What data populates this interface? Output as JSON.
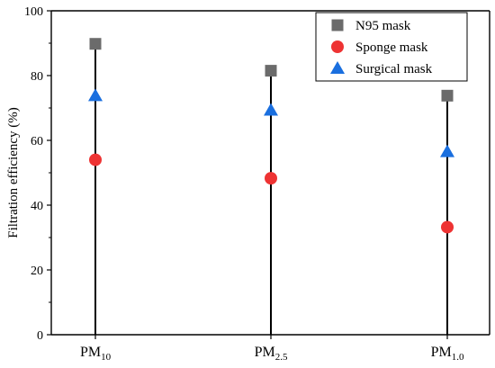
{
  "chart_data": {
    "type": "scatter",
    "categories": [
      {
        "base": "PM",
        "sub": "10"
      },
      {
        "base": "PM",
        "sub": "2.5"
      },
      {
        "base": "PM",
        "sub": "1.0"
      }
    ],
    "ylabel": "Filtration efficiency (%)",
    "ylim": [
      0,
      100
    ],
    "yticks": [
      0,
      20,
      40,
      60,
      80,
      100
    ],
    "grid": false,
    "legend_position": "top-right",
    "series": [
      {
        "name": "N95 mask",
        "marker": "square",
        "color": "#6b6b6b",
        "values": [
          89.8,
          81.5,
          73.8
        ]
      },
      {
        "name": "Sponge mask",
        "marker": "circle",
        "color": "#ee3333",
        "values": [
          54.0,
          48.3,
          33.2
        ]
      },
      {
        "name": "Surgical mask",
        "marker": "triangle",
        "color": "#1a6fdf",
        "values": [
          73.8,
          69.3,
          56.5
        ]
      }
    ]
  }
}
